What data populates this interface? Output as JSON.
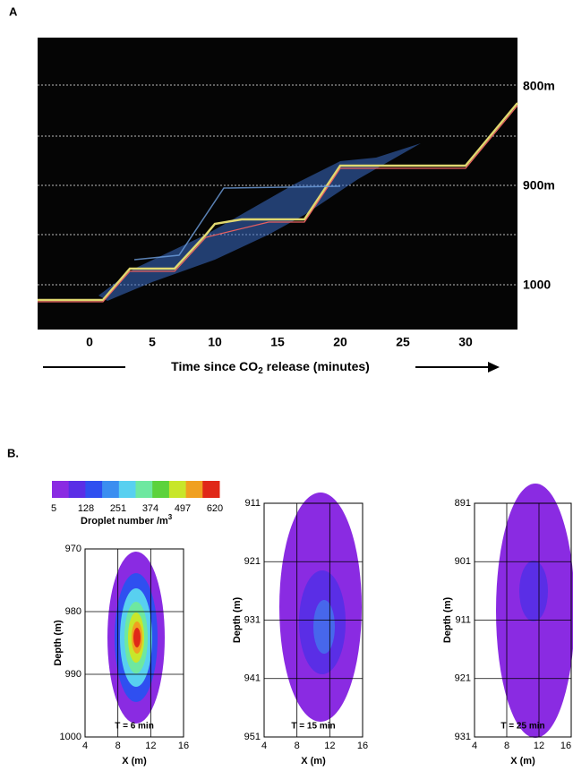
{
  "panel_a": {
    "label": "A",
    "x_ticks": [
      0,
      5,
      10,
      15,
      20,
      25,
      30
    ],
    "depth_labels": [
      "800m",
      "900m",
      "1000"
    ],
    "x_label_parts": [
      "Time since CO",
      "2",
      " release (minutes)"
    ]
  },
  "panel_b": {
    "label": "B.",
    "colorbar": {
      "ticks": [
        5,
        128,
        251,
        374,
        497,
        620
      ],
      "colors": [
        "#8a2be2",
        "#5a2ee6",
        "#2f4ff0",
        "#3b8ef0",
        "#58d0f0",
        "#6ee8a0",
        "#5cd23c",
        "#c8e62a",
        "#f0a020",
        "#e02818"
      ],
      "label_parts": [
        "Droplet number /m",
        "3"
      ]
    },
    "plots": [
      {
        "yticks": [
          970,
          980,
          990,
          1000
        ],
        "xticks": [
          4,
          8,
          12,
          16
        ],
        "y_label": "Depth (m)",
        "x_label": "X (m)",
        "time_label": "T = 6 min"
      },
      {
        "yticks": [
          911,
          921,
          931,
          941,
          951
        ],
        "xticks": [
          4,
          8,
          12,
          16
        ],
        "y_label": "Depth (m)",
        "x_label": "X (m)",
        "time_label": "T = 15 min"
      },
      {
        "yticks": [
          891,
          901,
          911,
          921,
          931
        ],
        "xticks": [
          4,
          8,
          12,
          16
        ],
        "y_label": "Depth (m)",
        "x_label": "X (m)",
        "time_label": "T = 25 min"
      }
    ]
  }
}
